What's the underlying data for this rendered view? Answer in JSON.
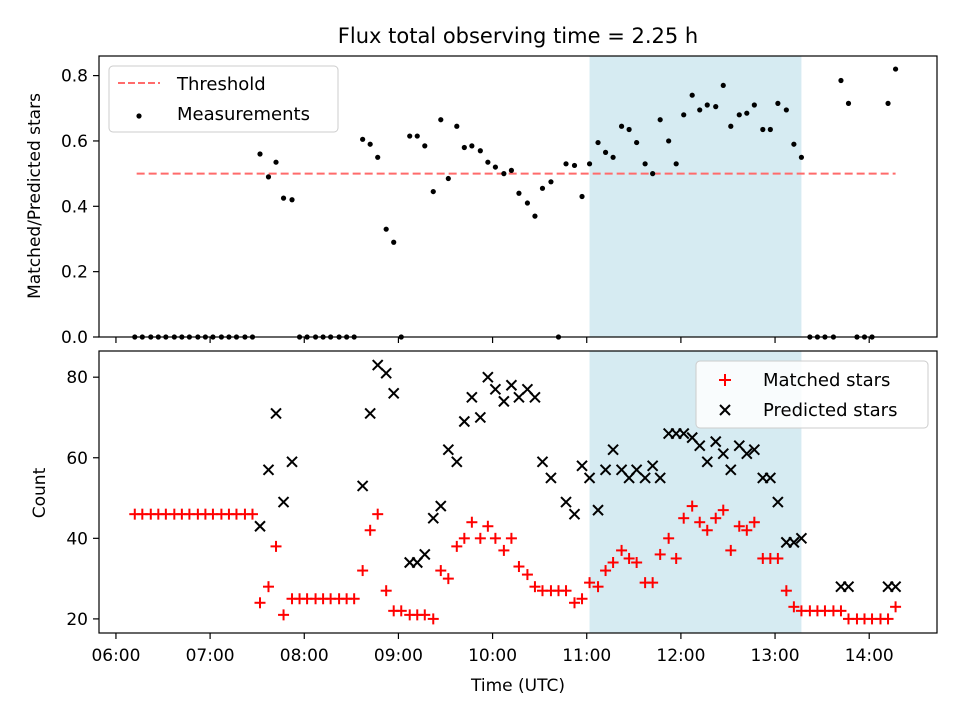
{
  "figure_title": "Flux total observing time = 2.25 h",
  "colors": {
    "threshold": "#ff6b6b",
    "measurements": "#000000",
    "matched": "#ff0000",
    "predicted": "#000000",
    "highlight_band": "#add8e6"
  },
  "chart_data": [
    {
      "type": "scatter",
      "title": "Flux total observing time = 2.25 h",
      "xlabel": "",
      "ylabel": "Matched/Predicted stars",
      "xlim": [
        5.82,
        14.72
      ],
      "ylim": [
        0,
        0.86
      ],
      "yticks": [
        0.0,
        0.2,
        0.4,
        0.6,
        0.8
      ],
      "ytick_labels": [
        "0.0",
        "0.2",
        "0.4",
        "0.6",
        "0.8"
      ],
      "highlight": {
        "x_start": 11.03,
        "x_end": 13.28
      },
      "legend": {
        "position": "top-left",
        "entries": [
          "Threshold",
          "Measurements"
        ]
      },
      "threshold": {
        "name": "Threshold",
        "x": [
          6.22,
          14.28
        ],
        "y": 0.5
      },
      "series": [
        {
          "name": "Measurements",
          "points": [
            [
              6.2,
              0
            ],
            [
              6.28,
              0
            ],
            [
              6.37,
              0
            ],
            [
              6.45,
              0
            ],
            [
              6.53,
              0
            ],
            [
              6.62,
              0
            ],
            [
              6.7,
              0
            ],
            [
              6.78,
              0
            ],
            [
              6.87,
              0
            ],
            [
              6.95,
              0
            ],
            [
              7.03,
              0
            ],
            [
              7.12,
              0
            ],
            [
              7.2,
              0
            ],
            [
              7.28,
              0
            ],
            [
              7.37,
              0
            ],
            [
              7.45,
              0
            ],
            [
              7.53,
              0.56
            ],
            [
              7.62,
              0.49
            ],
            [
              7.7,
              0.535
            ],
            [
              7.78,
              0.425
            ],
            [
              7.87,
              0.42
            ],
            [
              7.95,
              0
            ],
            [
              8.03,
              0
            ],
            [
              8.12,
              0
            ],
            [
              8.2,
              0
            ],
            [
              8.28,
              0
            ],
            [
              8.37,
              0
            ],
            [
              8.45,
              0
            ],
            [
              8.53,
              0
            ],
            [
              8.62,
              0.605
            ],
            [
              8.7,
              0.59
            ],
            [
              8.78,
              0.55
            ],
            [
              8.87,
              0.33
            ],
            [
              8.95,
              0.29
            ],
            [
              9.03,
              0
            ],
            [
              9.12,
              0.615
            ],
            [
              9.2,
              0.615
            ],
            [
              9.28,
              0.585
            ],
            [
              9.37,
              0.445
            ],
            [
              9.45,
              0.665
            ],
            [
              9.53,
              0.485
            ],
            [
              9.62,
              0.645
            ],
            [
              9.7,
              0.58
            ],
            [
              9.78,
              0.585
            ],
            [
              9.87,
              0.57
            ],
            [
              9.95,
              0.535
            ],
            [
              10.03,
              0.52
            ],
            [
              10.12,
              0.5
            ],
            [
              10.2,
              0.51
            ],
            [
              10.28,
              0.44
            ],
            [
              10.37,
              0.41
            ],
            [
              10.45,
              0.37
            ],
            [
              10.53,
              0.455
            ],
            [
              10.62,
              0.475
            ],
            [
              10.7,
              0
            ],
            [
              10.78,
              0.53
            ],
            [
              10.87,
              0.525
            ],
            [
              10.95,
              0.43
            ],
            [
              11.03,
              0.53
            ],
            [
              11.12,
              0.595
            ],
            [
              11.2,
              0.565
            ],
            [
              11.28,
              0.55
            ],
            [
              11.37,
              0.645
            ],
            [
              11.45,
              0.635
            ],
            [
              11.53,
              0.595
            ],
            [
              11.62,
              0.53
            ],
            [
              11.7,
              0.5
            ],
            [
              11.78,
              0.665
            ],
            [
              11.87,
              0.6
            ],
            [
              11.95,
              0.53
            ],
            [
              12.03,
              0.68
            ],
            [
              12.12,
              0.74
            ],
            [
              12.2,
              0.695
            ],
            [
              12.28,
              0.71
            ],
            [
              12.37,
              0.705
            ],
            [
              12.45,
              0.77
            ],
            [
              12.53,
              0.645
            ],
            [
              12.62,
              0.68
            ],
            [
              12.7,
              0.685
            ],
            [
              12.78,
              0.71
            ],
            [
              12.87,
              0.635
            ],
            [
              12.95,
              0.635
            ],
            [
              13.03,
              0.715
            ],
            [
              13.12,
              0.695
            ],
            [
              13.2,
              0.59
            ],
            [
              13.28,
              0.55
            ],
            [
              13.37,
              0
            ],
            [
              13.45,
              0
            ],
            [
              13.53,
              0
            ],
            [
              13.62,
              0
            ],
            [
              13.7,
              0.785
            ],
            [
              13.78,
              0.715
            ],
            [
              13.87,
              0
            ],
            [
              13.95,
              0
            ],
            [
              14.03,
              0
            ],
            [
              14.2,
              0.715
            ],
            [
              14.28,
              0.82
            ]
          ]
        }
      ]
    },
    {
      "type": "scatter",
      "title": "",
      "xlabel": "Time (UTC)",
      "ylabel": "Count",
      "xlim": [
        5.82,
        14.72
      ],
      "ylim": [
        16.5,
        86.5
      ],
      "yticks": [
        20,
        40,
        60,
        80
      ],
      "ytick_labels": [
        "20",
        "40",
        "60",
        "80"
      ],
      "xticks": [
        6,
        7,
        8,
        9,
        10,
        11,
        12,
        13,
        14
      ],
      "xtick_labels": [
        "06:00",
        "07:00",
        "08:00",
        "09:00",
        "10:00",
        "11:00",
        "12:00",
        "13:00",
        "14:00"
      ],
      "highlight": {
        "x_start": 11.03,
        "x_end": 13.28
      },
      "legend": {
        "position": "top-right",
        "entries": [
          "Matched stars",
          "Predicted stars"
        ]
      },
      "series": [
        {
          "name": "Matched stars",
          "marker": "+",
          "points": [
            [
              6.2,
              46
            ],
            [
              6.28,
              46
            ],
            [
              6.37,
              46
            ],
            [
              6.45,
              46
            ],
            [
              6.53,
              46
            ],
            [
              6.62,
              46
            ],
            [
              6.7,
              46
            ],
            [
              6.78,
              46
            ],
            [
              6.87,
              46
            ],
            [
              6.95,
              46
            ],
            [
              7.03,
              46
            ],
            [
              7.12,
              46
            ],
            [
              7.2,
              46
            ],
            [
              7.28,
              46
            ],
            [
              7.37,
              46
            ],
            [
              7.45,
              46
            ],
            [
              7.53,
              24
            ],
            [
              7.62,
              28
            ],
            [
              7.7,
              38
            ],
            [
              7.78,
              21
            ],
            [
              7.87,
              25
            ],
            [
              7.95,
              25
            ],
            [
              8.03,
              25
            ],
            [
              8.12,
              25
            ],
            [
              8.2,
              25
            ],
            [
              8.28,
              25
            ],
            [
              8.37,
              25
            ],
            [
              8.45,
              25
            ],
            [
              8.53,
              25
            ],
            [
              8.62,
              32
            ],
            [
              8.7,
              42
            ],
            [
              8.78,
              46
            ],
            [
              8.87,
              27
            ],
            [
              8.95,
              22
            ],
            [
              9.03,
              22
            ],
            [
              9.12,
              21
            ],
            [
              9.2,
              21
            ],
            [
              9.28,
              21
            ],
            [
              9.37,
              20
            ],
            [
              9.45,
              32
            ],
            [
              9.53,
              30
            ],
            [
              9.62,
              38
            ],
            [
              9.7,
              40
            ],
            [
              9.78,
              44
            ],
            [
              9.87,
              40
            ],
            [
              9.95,
              43
            ],
            [
              10.03,
              40
            ],
            [
              10.12,
              37
            ],
            [
              10.2,
              40
            ],
            [
              10.28,
              33
            ],
            [
              10.37,
              31
            ],
            [
              10.45,
              28
            ],
            [
              10.53,
              27
            ],
            [
              10.62,
              27
            ],
            [
              10.7,
              27
            ],
            [
              10.78,
              27
            ],
            [
              10.87,
              24
            ],
            [
              10.95,
              25
            ],
            [
              11.03,
              29
            ],
            [
              11.12,
              28
            ],
            [
              11.2,
              32
            ],
            [
              11.28,
              34
            ],
            [
              11.37,
              37
            ],
            [
              11.45,
              35
            ],
            [
              11.53,
              34
            ],
            [
              11.62,
              29
            ],
            [
              11.7,
              29
            ],
            [
              11.78,
              36
            ],
            [
              11.87,
              40
            ],
            [
              11.95,
              35
            ],
            [
              12.03,
              45
            ],
            [
              12.12,
              48
            ],
            [
              12.2,
              44
            ],
            [
              12.28,
              42
            ],
            [
              12.37,
              45
            ],
            [
              12.45,
              47
            ],
            [
              12.53,
              37
            ],
            [
              12.62,
              43
            ],
            [
              12.7,
              42
            ],
            [
              12.78,
              44
            ],
            [
              12.87,
              35
            ],
            [
              12.95,
              35
            ],
            [
              13.03,
              35
            ],
            [
              13.12,
              27
            ],
            [
              13.2,
              23
            ],
            [
              13.28,
              22
            ],
            [
              13.37,
              22
            ],
            [
              13.45,
              22
            ],
            [
              13.53,
              22
            ],
            [
              13.62,
              22
            ],
            [
              13.7,
              22
            ],
            [
              13.78,
              20
            ],
            [
              13.87,
              20
            ],
            [
              13.95,
              20
            ],
            [
              14.03,
              20
            ],
            [
              14.12,
              20
            ],
            [
              14.2,
              20
            ],
            [
              14.28,
              23
            ]
          ]
        },
        {
          "name": "Predicted stars",
          "marker": "x",
          "points": [
            [
              7.53,
              43
            ],
            [
              7.62,
              57
            ],
            [
              7.7,
              71
            ],
            [
              7.78,
              49
            ],
            [
              7.87,
              59
            ],
            [
              8.62,
              53
            ],
            [
              8.7,
              71
            ],
            [
              8.78,
              83
            ],
            [
              8.87,
              81
            ],
            [
              8.95,
              76
            ],
            [
              9.12,
              34
            ],
            [
              9.2,
              34
            ],
            [
              9.28,
              36
            ],
            [
              9.37,
              45
            ],
            [
              9.45,
              48
            ],
            [
              9.53,
              62
            ],
            [
              9.62,
              59
            ],
            [
              9.7,
              69
            ],
            [
              9.78,
              75
            ],
            [
              9.87,
              70
            ],
            [
              9.95,
              80
            ],
            [
              10.03,
              77
            ],
            [
              10.12,
              74
            ],
            [
              10.2,
              78
            ],
            [
              10.28,
              75
            ],
            [
              10.37,
              77
            ],
            [
              10.45,
              75
            ],
            [
              10.53,
              59
            ],
            [
              10.62,
              55
            ],
            [
              10.78,
              49
            ],
            [
              10.87,
              46
            ],
            [
              10.95,
              58
            ],
            [
              11.03,
              55
            ],
            [
              11.12,
              47
            ],
            [
              11.2,
              57
            ],
            [
              11.28,
              62
            ],
            [
              11.37,
              57
            ],
            [
              11.45,
              55
            ],
            [
              11.53,
              57
            ],
            [
              11.62,
              55
            ],
            [
              11.7,
              58
            ],
            [
              11.78,
              55
            ],
            [
              11.87,
              66
            ],
            [
              11.95,
              66
            ],
            [
              12.03,
              66
            ],
            [
              12.12,
              65
            ],
            [
              12.2,
              63
            ],
            [
              12.28,
              59
            ],
            [
              12.37,
              64
            ],
            [
              12.45,
              61
            ],
            [
              12.53,
              57
            ],
            [
              12.62,
              63
            ],
            [
              12.7,
              61
            ],
            [
              12.78,
              62
            ],
            [
              12.87,
              55
            ],
            [
              12.95,
              55
            ],
            [
              13.03,
              49
            ],
            [
              13.12,
              39
            ],
            [
              13.2,
              39
            ],
            [
              13.28,
              40
            ],
            [
              13.7,
              28
            ],
            [
              13.78,
              28
            ],
            [
              14.2,
              28
            ],
            [
              14.28,
              28
            ]
          ]
        }
      ]
    }
  ]
}
